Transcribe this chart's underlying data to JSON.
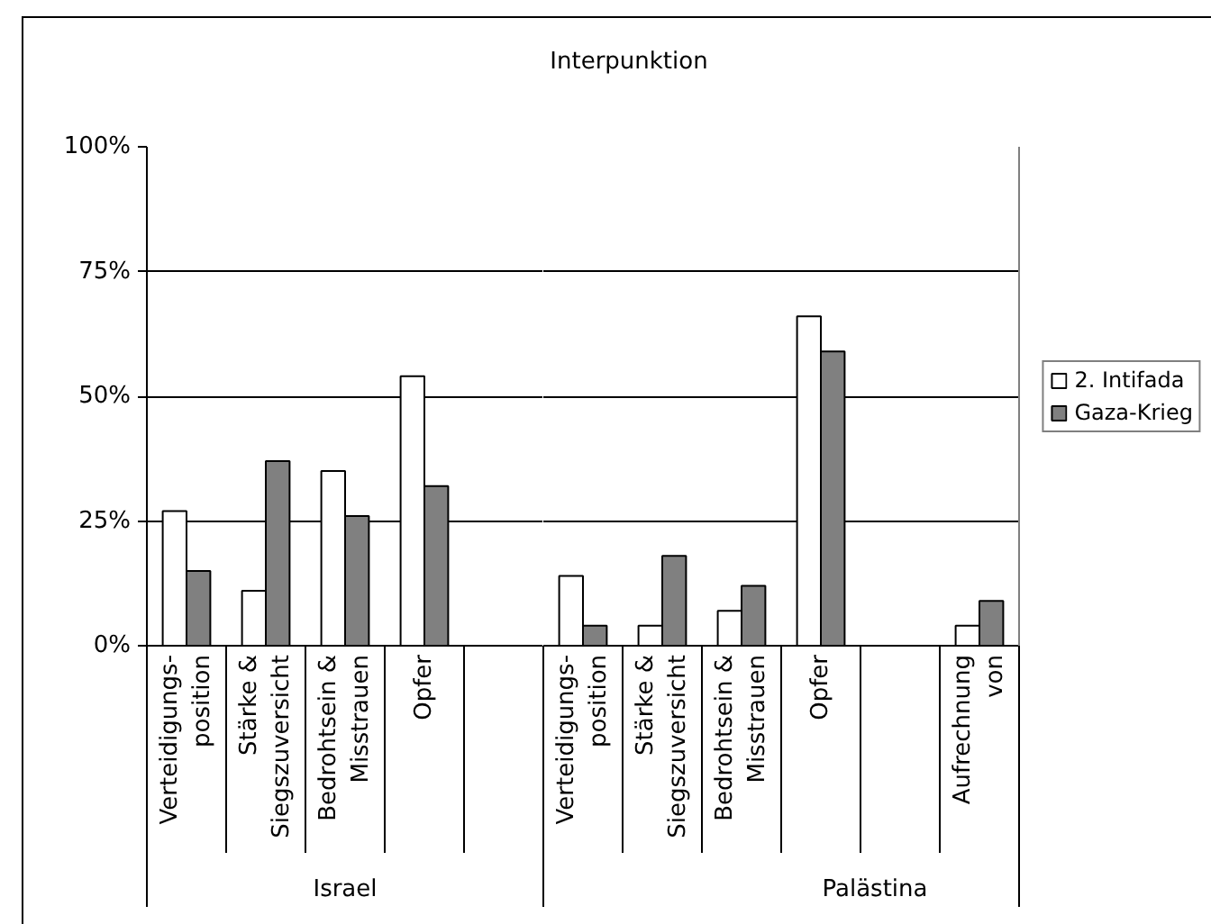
{
  "chart_data": [
    {
      "type": "bar",
      "xlabel": "Israel",
      "categories": [
        "Verteidigungs-\nposition",
        "Stärke &\nSiegszuversicht",
        "Bedrohtsein &\nMisstrauen",
        "Opfer",
        null
      ],
      "series": [
        {
          "color": "#ffffff",
          "values": [
            27,
            11,
            35,
            54,
            null
          ]
        },
        {
          "color": "#808080",
          "values": [
            15,
            37,
            26,
            32,
            null
          ]
        }
      ],
      "ylim": [
        0,
        100
      ],
      "yticks": [
        {
          "value": 0,
          "label": "0%"
        },
        {
          "value": 25,
          "label": "25%"
        },
        {
          "value": 50,
          "label": "50%"
        },
        {
          "value": 75,
          "label": "75%"
        },
        {
          "value": 100,
          "label": "100%"
        }
      ],
      "grid": "y"
    },
    {
      "type": "bar",
      "title": "Interpunktion",
      "xlabel": "Palästina",
      "categories": [
        "Verteidigungs-\nposition",
        "Stärke &\nSiegszuversicht",
        "Bedrohtsein &\nMisstrauen",
        "Opfer",
        null,
        "Aufrechnung\nvon"
      ],
      "series": [
        {
          "name": "2. Intifada",
          "color": "#ffffff",
          "values": [
            14,
            4,
            7,
            66,
            null,
            4
          ]
        },
        {
          "name": "Gaza-Krieg",
          "color": "#808080",
          "values": [
            4,
            18,
            12,
            59,
            null,
            9
          ]
        }
      ],
      "ylim": [
        0,
        100
      ],
      "yticks": [
        0,
        25,
        50,
        75,
        100
      ],
      "grid": "y",
      "legend": "right",
      "tick_labels": "x"
    }
  ]
}
